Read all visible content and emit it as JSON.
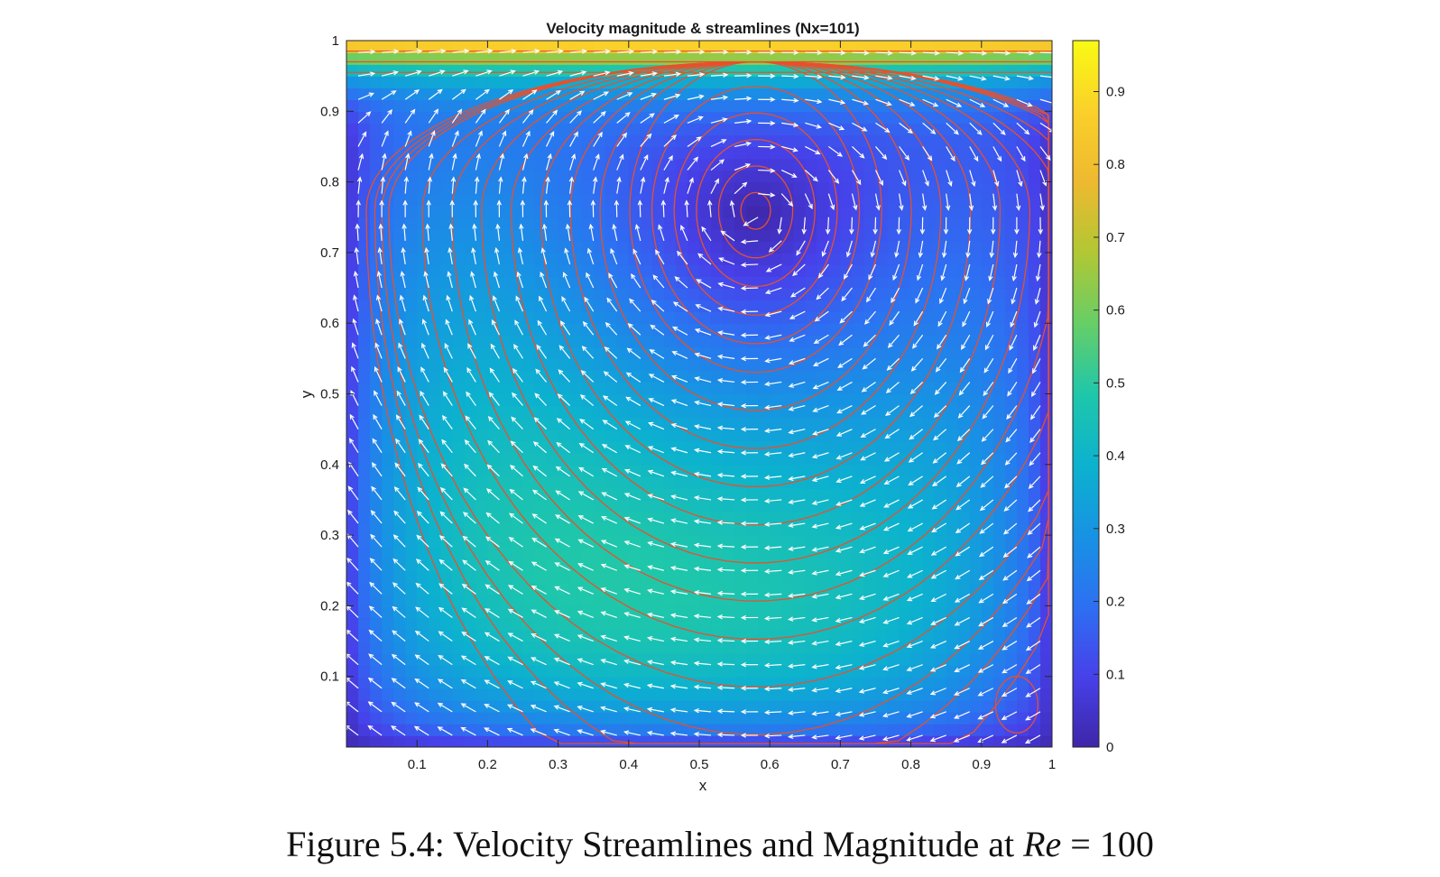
{
  "chart_data": {
    "type": "heatmap",
    "title": "Velocity magnitude & streamlines (Nx=101)",
    "xlabel": "x",
    "ylabel": "y",
    "xlim": [
      0,
      1
    ],
    "ylim": [
      0,
      1
    ],
    "x_ticks": [
      0.1,
      0.2,
      0.3,
      0.4,
      0.5,
      0.6,
      0.7,
      0.8,
      0.9,
      1
    ],
    "x_tick_labels": [
      "0.1",
      "0.2",
      "0.3",
      "0.4",
      "0.5",
      "0.6",
      "0.7",
      "0.8",
      "0.9",
      "1"
    ],
    "y_ticks": [
      0.1,
      0.2,
      0.3,
      0.4,
      0.5,
      0.6,
      0.7,
      0.8,
      0.9,
      1
    ],
    "y_tick_labels": [
      "0.1",
      "0.2",
      "0.3",
      "0.4",
      "0.5",
      "0.6",
      "0.7",
      "0.8",
      "0.9",
      "1"
    ],
    "colorbar": {
      "limits": [
        0,
        0.97
      ],
      "ticks": [
        0,
        0.1,
        0.2,
        0.3,
        0.4,
        0.5,
        0.6,
        0.7,
        0.8,
        0.9
      ],
      "tick_labels": [
        "0",
        "0.1",
        "0.2",
        "0.3",
        "0.4",
        "0.5",
        "0.6",
        "0.7",
        "0.8",
        "0.9"
      ],
      "colormap": "parula"
    },
    "vortex": {
      "primary_center": [
        0.58,
        0.76
      ],
      "secondary_center_bottom_right": [
        0.95,
        0.06
      ]
    },
    "lid_velocity": 1.0,
    "streamline_color": "#e8502c",
    "arrow_color": "#ffffff"
  },
  "caption": {
    "prefix": "Figure 5.4: Velocity Streamlines and Magnitude at ",
    "math_var": "Re",
    "suffix": " = 100"
  }
}
